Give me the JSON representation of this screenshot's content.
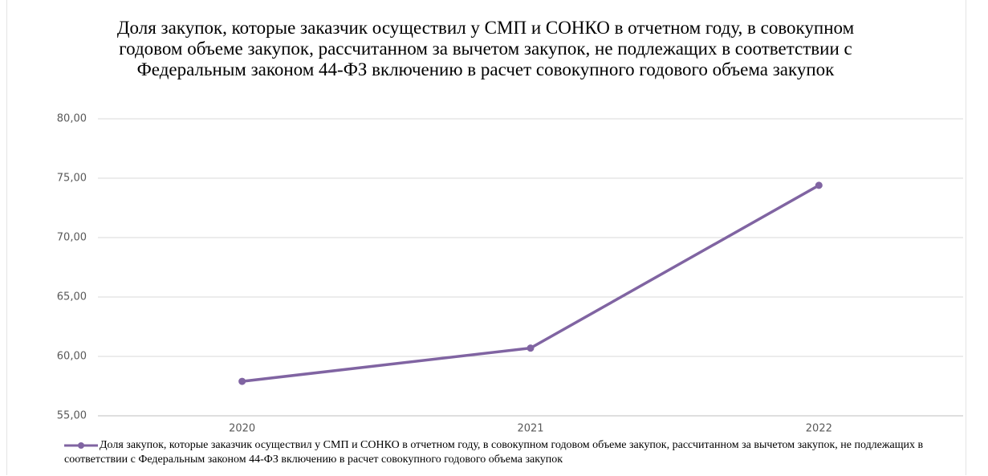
{
  "chart_data": {
    "type": "line",
    "title": "Доля закупок, которые заказчик осуществил у СМП и СОНКО в отчетном году, в совокупном годовом объеме закупок, рассчитанном за вычетом закупок, не подлежащих в соответствии с Федеральным законом 44-ФЗ включению в расчет совокупного годового объема закупок",
    "categories": [
      "2020",
      "2021",
      "2022"
    ],
    "series": [
      {
        "name": "Доля закупок, которые заказчик осуществил у СМП и СОНКО в отчетном году, в совокупном годовом объеме закупок, рассчитанном за вычетом закупок, не подлежащих в соответствии с Федеральным законом 44-ФЗ включению в расчет совокупного годового объема закупок",
        "color": "#8064a2",
        "values": [
          57.9,
          60.7,
          74.4
        ]
      }
    ],
    "ylim": [
      55,
      80
    ],
    "yticks": [
      {
        "value": 55,
        "label": "55,00"
      },
      {
        "value": 60,
        "label": "60,00"
      },
      {
        "value": 65,
        "label": "65,00"
      },
      {
        "value": 70,
        "label": "70,00"
      },
      {
        "value": 75,
        "label": "75,00"
      },
      {
        "value": 80,
        "label": "80,00"
      }
    ],
    "grid": true,
    "legend": "bottom"
  }
}
